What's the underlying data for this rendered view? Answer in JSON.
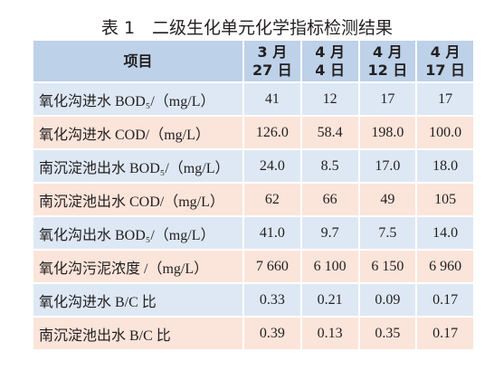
{
  "title": "表 1　二级生化单元化学指标检测结果",
  "table": {
    "header": [
      [
        "项目"
      ],
      [
        "3 月",
        "27 日"
      ],
      [
        "4 月",
        "4 日"
      ],
      [
        "4 月",
        "12 日"
      ],
      [
        "4 月",
        "17 日"
      ]
    ],
    "rows": [
      [
        "氧化沟进水 BOD₅/（mg/L）",
        "41",
        "12",
        "17",
        "17"
      ],
      [
        "氧化沟进水 COD/（mg/L）",
        "126.0",
        "58.4",
        "198.0",
        "100.0"
      ],
      [
        "南沉淀池出水 BOD₅/（mg/L）",
        "24.0",
        "8.5",
        "17.0",
        "18.0"
      ],
      [
        "南沉淀池出水 COD/（mg/L）",
        "62",
        "66",
        "49",
        "105"
      ],
      [
        "氧化沟出水 BOD₅/（mg/L）",
        "41.0",
        "9.7",
        "7.5",
        "14.0"
      ],
      [
        "氧化沟污泥浓度 /（mg/L）",
        "7 660",
        "6 100",
        "6 150",
        "6 960"
      ],
      [
        "氧化沟进水 B/C 比",
        "0.33",
        "0.21",
        "0.09",
        "0.17"
      ],
      [
        "南沉淀池出水 B/C 比",
        "0.39",
        "0.13",
        "0.35",
        "0.17"
      ]
    ]
  }
}
